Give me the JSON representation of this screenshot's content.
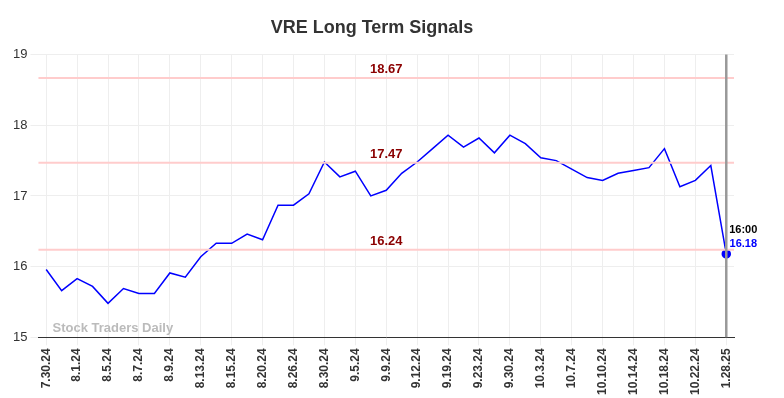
{
  "chart_data": {
    "type": "line",
    "title": "VRE Long Term Signals",
    "categories": [
      "7.30.24",
      null,
      "8.1.24",
      null,
      "8.5.24",
      null,
      "8.7.24",
      null,
      "8.9.24",
      null,
      "8.13.24",
      null,
      "8.15.24",
      null,
      "8.20.24",
      null,
      "8.26.24",
      null,
      "8.30.24",
      null,
      "9.5.24",
      null,
      "9.9.24",
      null,
      "9.12.24",
      null,
      "9.19.24",
      null,
      "9.23.24",
      null,
      "9.30.24",
      null,
      "10.3.24",
      null,
      "10.7.24",
      null,
      "10.10.24",
      null,
      "10.14.24",
      null,
      "10.18.24",
      null,
      "10.22.24",
      null,
      "1.28.25"
    ],
    "values": [
      15.96,
      15.66,
      15.83,
      15.72,
      15.48,
      15.69,
      15.62,
      15.62,
      15.91,
      15.85,
      16.14,
      16.33,
      16.33,
      16.46,
      16.38,
      16.87,
      16.87,
      17.03,
      17.48,
      17.27,
      17.35,
      17.0,
      17.08,
      17.32,
      17.48,
      17.67,
      17.86,
      17.69,
      17.82,
      17.61,
      17.86,
      17.74,
      17.54,
      17.5,
      17.38,
      17.26,
      17.22,
      17.32,
      17.36,
      17.4,
      17.67,
      17.13,
      17.22,
      17.43,
      16.18
    ],
    "color": "#0000ff",
    "ylim": [
      15,
      19
    ],
    "yticks": [
      15,
      16,
      17,
      18,
      19
    ],
    "grid": true,
    "reference_lines": [
      18.67,
      17.47,
      16.24
    ],
    "end_label": "16:00",
    "watermark": "Stock Traders Daily"
  }
}
